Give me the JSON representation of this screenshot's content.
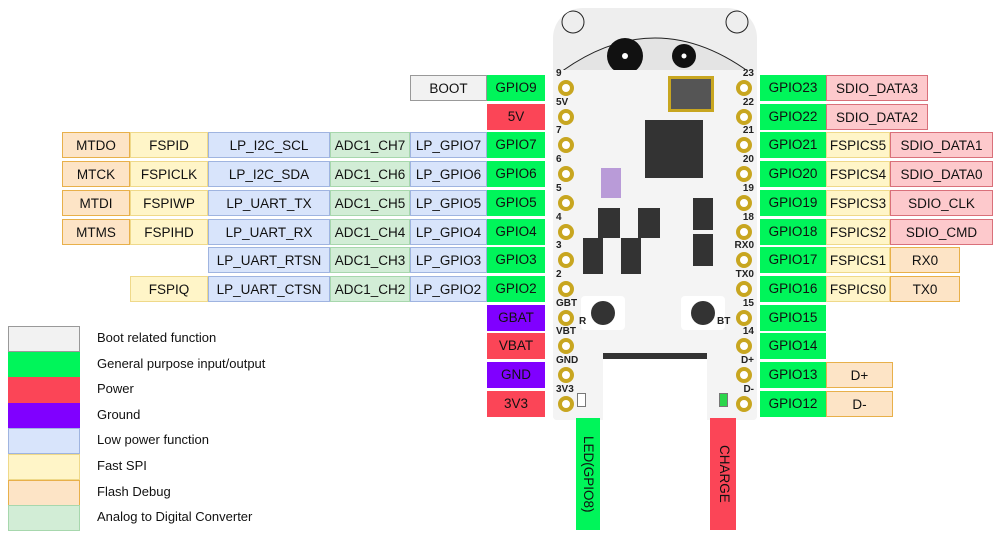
{
  "colors": {
    "boot": "#f2f2f2",
    "gpio": "#00f55a",
    "power": "#fb4557",
    "ground": "#8000ff",
    "low_power": "#d8e4fb",
    "fast_spi": "#fff5c8",
    "flash_debug": "#fde4c6",
    "adc": "#d2edd6",
    "sdio": "#fdc9cc"
  },
  "left_pins": [
    {
      "pin": "GPIO9",
      "type": "gpio",
      "functions": [
        {
          "label": "BOOT",
          "type": "boot"
        }
      ]
    },
    {
      "pin": "5V",
      "type": "power",
      "functions": []
    },
    {
      "pin": "GPIO7",
      "type": "gpio",
      "functions": [
        {
          "label": "LP_GPIO7",
          "type": "lp"
        },
        {
          "label": "ADC1_CH7",
          "type": "adc"
        },
        {
          "label": "LP_I2C_SCL",
          "type": "lp"
        },
        {
          "label": "FSPID",
          "type": "spi"
        },
        {
          "label": "MTDO",
          "type": "dbg"
        }
      ]
    },
    {
      "pin": "GPIO6",
      "type": "gpio",
      "functions": [
        {
          "label": "LP_GPIO6",
          "type": "lp"
        },
        {
          "label": "ADC1_CH6",
          "type": "adc"
        },
        {
          "label": "LP_I2C_SDA",
          "type": "lp"
        },
        {
          "label": "FSPICLK",
          "type": "spi"
        },
        {
          "label": "MTCK",
          "type": "dbg"
        }
      ]
    },
    {
      "pin": "GPIO5",
      "type": "gpio",
      "functions": [
        {
          "label": "LP_GPIO5",
          "type": "lp"
        },
        {
          "label": "ADC1_CH5",
          "type": "adc"
        },
        {
          "label": "LP_UART_TX",
          "type": "lp"
        },
        {
          "label": "FSPIWP",
          "type": "spi"
        },
        {
          "label": "MTDI",
          "type": "dbg"
        }
      ]
    },
    {
      "pin": "GPIO4",
      "type": "gpio",
      "functions": [
        {
          "label": "LP_GPIO4",
          "type": "lp"
        },
        {
          "label": "ADC1_CH4",
          "type": "adc"
        },
        {
          "label": "LP_UART_RX",
          "type": "lp"
        },
        {
          "label": "FSPIHD",
          "type": "spi"
        },
        {
          "label": "MTMS",
          "type": "dbg"
        }
      ]
    },
    {
      "pin": "GPIO3",
      "type": "gpio",
      "functions": [
        {
          "label": "LP_GPIO3",
          "type": "lp"
        },
        {
          "label": "ADC1_CH3",
          "type": "adc"
        },
        {
          "label": "LP_UART_RTSN",
          "type": "lp"
        }
      ]
    },
    {
      "pin": "GPIO2",
      "type": "gpio",
      "functions": [
        {
          "label": "LP_GPIO2",
          "type": "lp"
        },
        {
          "label": "ADC1_CH2",
          "type": "adc"
        },
        {
          "label": "LP_UART_CTSN",
          "type": "lp"
        },
        {
          "label": "FSPIQ",
          "type": "spi"
        }
      ]
    },
    {
      "pin": "GBAT",
      "type": "ground",
      "functions": []
    },
    {
      "pin": "VBAT",
      "type": "power",
      "functions": []
    },
    {
      "pin": "GND",
      "type": "ground",
      "functions": []
    },
    {
      "pin": "3V3",
      "type": "power",
      "functions": []
    }
  ],
  "right_pins": [
    {
      "pin": "GPIO23",
      "type": "gpio",
      "functions": [
        {
          "label": "SDIO_DATA3",
          "type": "sdio"
        }
      ]
    },
    {
      "pin": "GPIO22",
      "type": "gpio",
      "functions": [
        {
          "label": "SDIO_DATA2",
          "type": "sdio"
        }
      ]
    },
    {
      "pin": "GPIO21",
      "type": "gpio",
      "functions": [
        {
          "label": "FSPICS5",
          "type": "spi"
        },
        {
          "label": "SDIO_DATA1",
          "type": "sdio"
        }
      ]
    },
    {
      "pin": "GPIO20",
      "type": "gpio",
      "functions": [
        {
          "label": "FSPICS4",
          "type": "spi"
        },
        {
          "label": "SDIO_DATA0",
          "type": "sdio"
        }
      ]
    },
    {
      "pin": "GPIO19",
      "type": "gpio",
      "functions": [
        {
          "label": "FSPICS3",
          "type": "spi"
        },
        {
          "label": "SDIO_CLK",
          "type": "sdio"
        }
      ]
    },
    {
      "pin": "GPIO18",
      "type": "gpio",
      "functions": [
        {
          "label": "FSPICS2",
          "type": "spi"
        },
        {
          "label": "SDIO_CMD",
          "type": "sdio"
        }
      ]
    },
    {
      "pin": "GPIO17",
      "type": "gpio",
      "functions": [
        {
          "label": "FSPICS1",
          "type": "spi"
        },
        {
          "label": "RX0",
          "type": "dbg"
        }
      ]
    },
    {
      "pin": "GPIO16",
      "type": "gpio",
      "functions": [
        {
          "label": "FSPICS0",
          "type": "spi"
        },
        {
          "label": "TX0",
          "type": "dbg"
        }
      ]
    },
    {
      "pin": "GPIO15",
      "type": "gpio",
      "functions": []
    },
    {
      "pin": "GPIO14",
      "type": "gpio",
      "functions": []
    },
    {
      "pin": "GPIO13",
      "type": "gpio",
      "functions": [
        {
          "label": "D+",
          "type": "dbg"
        }
      ]
    },
    {
      "pin": "GPIO12",
      "type": "gpio",
      "functions": [
        {
          "label": "D-",
          "type": "dbg"
        }
      ]
    }
  ],
  "board": {
    "left_silk": [
      "9",
      "5V",
      "7",
      "6",
      "5",
      "4",
      "3",
      "2",
      "GBT",
      "VBT",
      "GND",
      "3V3"
    ],
    "right_silk": [
      "23",
      "22",
      "21",
      "20",
      "19",
      "18",
      "RX0",
      "TX0",
      "15",
      "14",
      "D+",
      "D-"
    ],
    "button_left": "R",
    "button_right": "BT"
  },
  "bottom_labels": {
    "led": "LED(GPIO8)",
    "charge": "CHARGE"
  },
  "legend": [
    {
      "label": "Boot related function",
      "type": "boot"
    },
    {
      "label": "General purpose input/output",
      "type": "gpio"
    },
    {
      "label": "Power",
      "type": "power"
    },
    {
      "label": "Ground",
      "type": "ground"
    },
    {
      "label": "Low power function",
      "type": "lp"
    },
    {
      "label": "Fast SPI",
      "type": "spi"
    },
    {
      "label": "Flash Debug",
      "type": "dbg"
    },
    {
      "label": "Analog to Digital Converter",
      "type": "adc"
    }
  ]
}
